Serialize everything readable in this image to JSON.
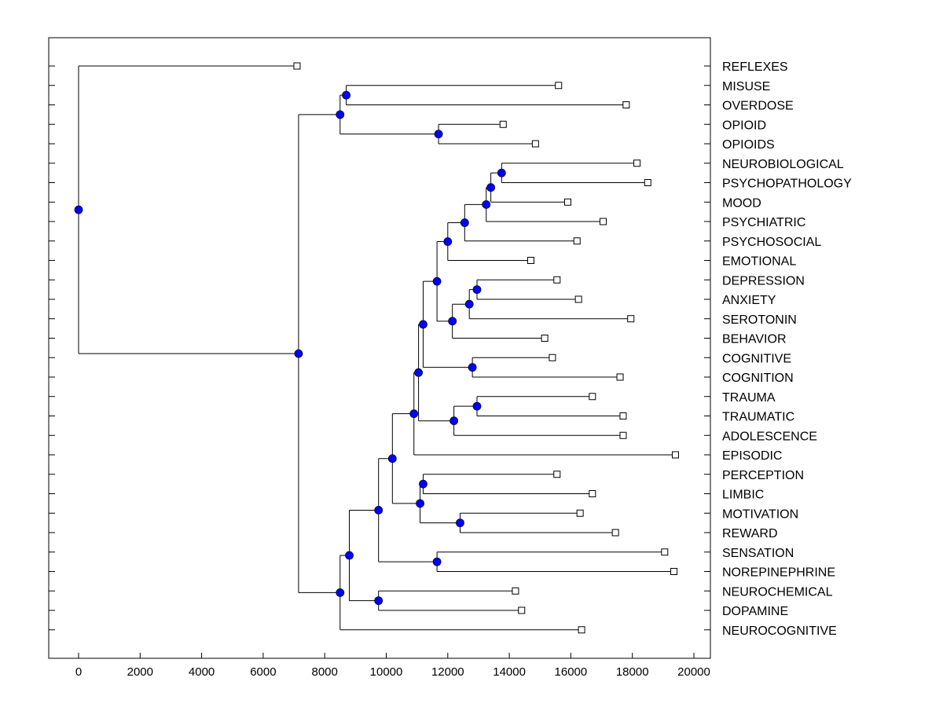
{
  "chart_data": {
    "type": "dendrogram",
    "orientation": "horizontal",
    "xlim": [
      -1000,
      20400
    ],
    "x_ticks": [
      0,
      2000,
      4000,
      6000,
      8000,
      10000,
      12000,
      14000,
      16000,
      18000,
      20000
    ],
    "colors": {
      "node_fill": "#0000ff",
      "line": "#000000",
      "leaf_fill": "#ffffff"
    },
    "leaves": [
      {
        "label": "REFLEXES",
        "value": 7100
      },
      {
        "label": "MISUSE",
        "value": 15600
      },
      {
        "label": "OVERDOSE",
        "value": 17800
      },
      {
        "label": "OPIOID",
        "value": 13800
      },
      {
        "label": "OPIOIDS",
        "value": 14850
      },
      {
        "label": "NEUROBIOLOGICAL",
        "value": 18150
      },
      {
        "label": "PSYCHOPATHOLOGY",
        "value": 18500
      },
      {
        "label": "MOOD",
        "value": 15900
      },
      {
        "label": "PSYCHIATRIC",
        "value": 17050
      },
      {
        "label": "PSYCHOSOCIAL",
        "value": 16200
      },
      {
        "label": "EMOTIONAL",
        "value": 14700
      },
      {
        "label": "DEPRESSION",
        "value": 15550
      },
      {
        "label": "ANXIETY",
        "value": 16250
      },
      {
        "label": "SEROTONIN",
        "value": 17950
      },
      {
        "label": "BEHAVIOR",
        "value": 15150
      },
      {
        "label": "COGNITIVE",
        "value": 15400
      },
      {
        "label": "COGNITION",
        "value": 17600
      },
      {
        "label": "TRAUMA",
        "value": 16700
      },
      {
        "label": "TRAUMATIC",
        "value": 17700
      },
      {
        "label": "ADOLESCENCE",
        "value": 17700
      },
      {
        "label": "EPISODIC",
        "value": 19400
      },
      {
        "label": "PERCEPTION",
        "value": 15550
      },
      {
        "label": "LIMBIC",
        "value": 16700
      },
      {
        "label": "MOTIVATION",
        "value": 16300
      },
      {
        "label": "REWARD",
        "value": 17450
      },
      {
        "label": "SENSATION",
        "value": 19050
      },
      {
        "label": "NOREPINEPHRINE",
        "value": 19350
      },
      {
        "label": "NEUROCHEMICAL",
        "value": 14200
      },
      {
        "label": "DOPAMINE",
        "value": 14400
      },
      {
        "label": "NEUROCOGNITIVE",
        "value": 16350
      }
    ],
    "merges": [
      {
        "id": "n1",
        "value": 8700,
        "children": [
          "L1",
          "L2"
        ]
      },
      {
        "id": "n2",
        "value": 11700,
        "children": [
          "L3",
          "L4"
        ]
      },
      {
        "id": "n3",
        "value": 8500,
        "children": [
          "n1",
          "n2"
        ]
      },
      {
        "id": "n4",
        "value": 13750,
        "children": [
          "L5",
          "L6"
        ]
      },
      {
        "id": "n5",
        "value": 13400,
        "children": [
          "n4",
          "L7"
        ]
      },
      {
        "id": "n6",
        "value": 13250,
        "children": [
          "n5",
          "L8"
        ]
      },
      {
        "id": "n7",
        "value": 12550,
        "children": [
          "n6",
          "L9"
        ]
      },
      {
        "id": "n8",
        "value": 12000,
        "children": [
          "n7",
          "L10"
        ]
      },
      {
        "id": "n9",
        "value": 12950,
        "children": [
          "L11",
          "L12"
        ]
      },
      {
        "id": "n10",
        "value": 12700,
        "children": [
          "n9",
          "L13"
        ]
      },
      {
        "id": "n11",
        "value": 12150,
        "children": [
          "n10",
          "L14"
        ]
      },
      {
        "id": "n12",
        "value": 11650,
        "children": [
          "n8",
          "n11"
        ]
      },
      {
        "id": "n13",
        "value": 12800,
        "children": [
          "L15",
          "L16"
        ]
      },
      {
        "id": "n14",
        "value": 11200,
        "children": [
          "n12",
          "n13"
        ]
      },
      {
        "id": "n15",
        "value": 12950,
        "children": [
          "L17",
          "L18"
        ]
      },
      {
        "id": "n16",
        "value": 12200,
        "children": [
          "n15",
          "L19"
        ]
      },
      {
        "id": "n17",
        "value": 11050,
        "children": [
          "n14",
          "n16"
        ]
      },
      {
        "id": "n18",
        "value": 10900,
        "children": [
          "n17",
          "L20"
        ]
      },
      {
        "id": "n19",
        "value": 11200,
        "children": [
          "L21",
          "L22"
        ]
      },
      {
        "id": "n20",
        "value": 12400,
        "children": [
          "L23",
          "L24"
        ]
      },
      {
        "id": "n21",
        "value": 11100,
        "children": [
          "n19",
          "n20"
        ]
      },
      {
        "id": "n22",
        "value": 10200,
        "children": [
          "n18",
          "n21"
        ]
      },
      {
        "id": "n23",
        "value": 11650,
        "children": [
          "L25",
          "L26"
        ]
      },
      {
        "id": "n24",
        "value": 9750,
        "children": [
          "n22",
          "n23"
        ]
      },
      {
        "id": "n25",
        "value": 9750,
        "children": [
          "L27",
          "L28"
        ]
      },
      {
        "id": "n26",
        "value": 8800,
        "children": [
          "n24",
          "n25"
        ]
      },
      {
        "id": "n27",
        "value": 8500,
        "children": [
          "n26",
          "L29"
        ]
      },
      {
        "id": "n28",
        "value": 7150,
        "children": [
          "n3",
          "n27"
        ]
      },
      {
        "id": "root",
        "value": 0,
        "children": [
          "L0",
          "n28"
        ]
      }
    ]
  }
}
